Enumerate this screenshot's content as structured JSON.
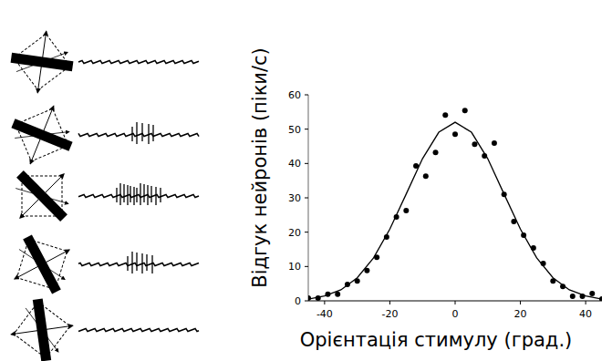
{
  "chart_data": {
    "type": "scatter",
    "x_label": "Орієнтація стимулу (град.)",
    "y_label": "Відгук нейронів (піки/с)",
    "xlim": [
      -45,
      45
    ],
    "ylim": [
      0,
      60
    ],
    "xticks": [
      -40,
      -20,
      0,
      20,
      40
    ],
    "yticks": [
      0,
      10,
      20,
      30,
      40,
      50,
      60
    ],
    "grid": false,
    "series": [
      {
        "type": "scatter",
        "marker": "circle",
        "color": "#000000",
        "x": [
          -45,
          -42,
          -39,
          -36,
          -33,
          -30,
          -27,
          -24,
          -21,
          -18,
          -15,
          -12,
          -9,
          -6,
          -3,
          0,
          3,
          6,
          9,
          12,
          15,
          18,
          21,
          24,
          27,
          30,
          33,
          36,
          39,
          42,
          45
        ],
        "values": [
          0.8,
          0.8,
          1.9,
          1.9,
          4.8,
          5.8,
          8.8,
          12.7,
          18.6,
          24.4,
          26.3,
          39.3,
          36.3,
          43.2,
          54.1,
          48.5,
          55.4,
          45.6,
          42.2,
          45.9,
          31.0,
          23.1,
          19.1,
          15.4,
          10.9,
          5.8,
          4.2,
          1.3,
          1.3,
          2.1,
          0.5
        ]
      },
      {
        "type": "line",
        "line_style": "solid",
        "color": "#000000",
        "x": [
          -45,
          -40,
          -35,
          -30,
          -25,
          -20,
          -15,
          -10,
          -5,
          0,
          5,
          10,
          15,
          20,
          25,
          30,
          35,
          40,
          45
        ],
        "values": [
          0.5,
          1.4,
          3.2,
          6.7,
          12.5,
          20.9,
          31.1,
          41.4,
          49.1,
          52,
          49.1,
          41.4,
          31.1,
          20.9,
          12.5,
          6.7,
          3.2,
          1.4,
          0.5
        ]
      }
    ]
  }
}
